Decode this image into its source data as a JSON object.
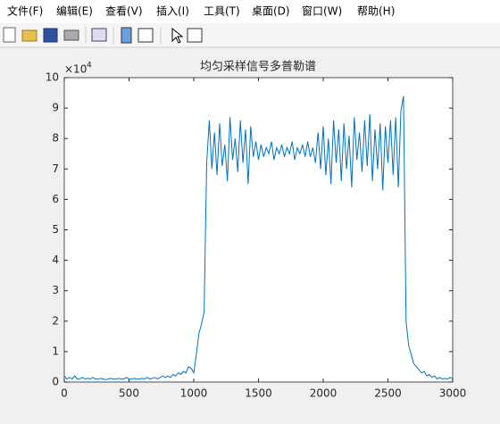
{
  "menu": [
    "文件(F)",
    "编辑(E)",
    "查看(V)",
    "插入(I)",
    "工具(T)",
    "桌面(D)",
    "窗口(W)",
    "帮助(H)"
  ],
  "chart_data": {
    "type": "line",
    "title": "均匀采样信号多普勒谱",
    "y_multiplier": "×10",
    "y_multiplier_exp": "4",
    "xlim": [
      0,
      3000
    ],
    "xticks": [
      0,
      500,
      1000,
      1500,
      2000,
      2500,
      3000
    ],
    "ylim": [
      0,
      10
    ],
    "yticks": [
      0,
      1,
      2,
      3,
      4,
      5,
      6,
      7,
      8,
      9,
      10
    ],
    "x": [
      0,
      20,
      40,
      60,
      80,
      100,
      120,
      140,
      160,
      180,
      200,
      220,
      240,
      260,
      280,
      300,
      320,
      340,
      360,
      380,
      400,
      420,
      440,
      460,
      480,
      500,
      520,
      540,
      560,
      580,
      600,
      620,
      640,
      660,
      680,
      700,
      720,
      740,
      760,
      780,
      800,
      820,
      840,
      860,
      880,
      900,
      920,
      940,
      960,
      980,
      1000,
      1020,
      1040,
      1060,
      1080,
      1100,
      1120,
      1140,
      1160,
      1180,
      1200,
      1220,
      1240,
      1260,
      1280,
      1300,
      1320,
      1340,
      1360,
      1380,
      1400,
      1420,
      1440,
      1460,
      1480,
      1500,
      1520,
      1540,
      1560,
      1580,
      1600,
      1620,
      1640,
      1660,
      1680,
      1700,
      1720,
      1740,
      1760,
      1780,
      1800,
      1820,
      1840,
      1860,
      1880,
      1900,
      1920,
      1940,
      1960,
      1980,
      2000,
      2020,
      2040,
      2060,
      2080,
      2100,
      2120,
      2140,
      2160,
      2180,
      2200,
      2220,
      2240,
      2260,
      2280,
      2300,
      2320,
      2340,
      2360,
      2380,
      2400,
      2420,
      2440,
      2460,
      2480,
      2500,
      2520,
      2540,
      2560,
      2580,
      2600,
      2620,
      2640,
      2660,
      2680,
      2700,
      2720,
      2740,
      2760,
      2780,
      2800,
      2820,
      2840,
      2860,
      2880,
      2900,
      2920,
      2940,
      2960,
      2980,
      3000
    ],
    "series": [
      {
        "color": "#0072bd",
        "values": [
          0.2,
          0.1,
          0.15,
          0.1,
          0.2,
          0.1,
          0.1,
          0.15,
          0.1,
          0.12,
          0.1,
          0.15,
          0.1,
          0.1,
          0.12,
          0.1,
          0.08,
          0.1,
          0.12,
          0.1,
          0.1,
          0.12,
          0.1,
          0.1,
          0.15,
          0.1,
          0.1,
          0.12,
          0.1,
          0.1,
          0.12,
          0.1,
          0.15,
          0.1,
          0.12,
          0.15,
          0.1,
          0.15,
          0.2,
          0.15,
          0.2,
          0.15,
          0.25,
          0.2,
          0.3,
          0.25,
          0.35,
          0.3,
          0.5,
          0.45,
          0.3,
          0.9,
          1.6,
          1.9,
          2.3,
          7.2,
          8.6,
          7.0,
          8.2,
          6.8,
          8.5,
          7.1,
          7.8,
          6.6,
          8.7,
          7.3,
          8.0,
          6.9,
          8.6,
          7.2,
          8.3,
          6.5,
          8.4,
          7.4,
          7.9,
          7.3,
          7.8,
          7.4,
          7.7,
          7.5,
          7.9,
          7.3,
          7.7,
          7.5,
          7.8,
          7.4,
          7.7,
          7.5,
          7.9,
          7.3,
          7.7,
          7.5,
          7.8,
          7.4,
          7.9,
          7.4,
          7.7,
          7.2,
          8.2,
          7.0,
          8.4,
          6.8,
          8.0,
          6.5,
          8.6,
          7.2,
          8.3,
          6.6,
          8.5,
          7.0,
          8.1,
          6.4,
          8.7,
          7.3,
          8.2,
          6.9,
          8.6,
          7.1,
          8.8,
          6.6,
          8.3,
          7.0,
          8.5,
          6.3,
          8.4,
          7.2,
          8.6,
          6.8,
          8.7,
          6.4,
          8.9,
          9.4,
          2.0,
          1.2,
          0.9,
          0.6,
          0.5,
          0.4,
          0.3,
          0.35,
          0.2,
          0.25,
          0.15,
          0.2,
          0.1,
          0.15,
          0.1,
          0.12,
          0.1,
          0.15,
          0.1
        ]
      }
    ]
  }
}
